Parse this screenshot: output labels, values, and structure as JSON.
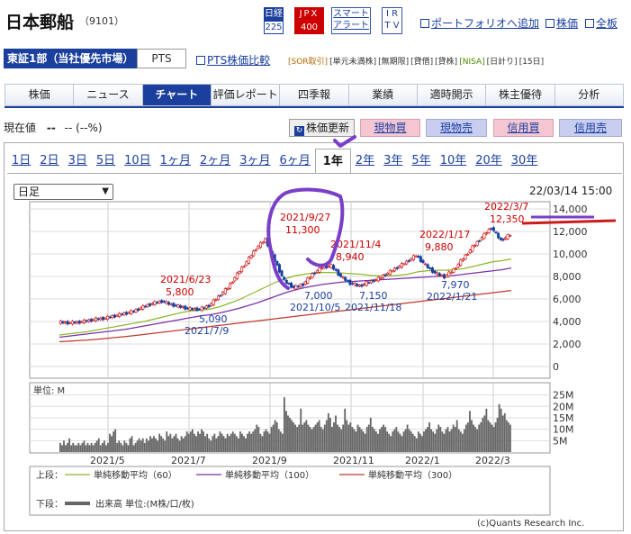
{
  "header": {
    "title": "日本郵船",
    "code": "（9101）",
    "badges": {
      "nikkei_top": "日経",
      "nikkei_bottom": "225",
      "jpx_top": "JPX",
      "jpx_bottom": "400",
      "smart_top": "スマート",
      "smart_bottom": "アラート",
      "ir_top": "I R",
      "ir_bottom": "T V"
    },
    "links": {
      "portfolio": "ポートフォリオへ追加",
      "stock": "株価",
      "board": "全板"
    }
  },
  "market": {
    "selected": "東証1部（当社優先市場）",
    "pts": "PTS",
    "pts_compare": "PTS株価比較",
    "tags": [
      "[SOR取引]",
      "[単元未満株]",
      "[無期限]",
      "[貸借]",
      "[貸株]",
      "[NISA]",
      "[日計り]",
      "[15日]"
    ]
  },
  "nav": [
    "株価",
    "ニュース",
    "チャート",
    "評価レポート",
    "四季報",
    "業績",
    "適時開示",
    "株主優待",
    "分析"
  ],
  "price": {
    "label": "現在値",
    "value": "--",
    "change": "-- (--%)"
  },
  "buttons": {
    "update": "株価更新",
    "genbuy": "現物買",
    "gensell": "現物売",
    "shinbuy": "信用買",
    "shinsell": "信用売"
  },
  "ranges": [
    "1日",
    "2日",
    "3日",
    "5日",
    "10日",
    "1ヶ月",
    "2ヶ月",
    "3ヶ月",
    "6ヶ月",
    "1年",
    "2年",
    "3年",
    "5年",
    "10年",
    "20年",
    "30年"
  ],
  "active_range": "1年",
  "select": {
    "value": "日足"
  },
  "datetime": "22/03/14 15:00",
  "legend": {
    "upper_label": "上段：",
    "lower_label": "下段：",
    "items": [
      "単純移動平均（60）",
      "単純移動平均（100）",
      "単純移動平均（300）"
    ],
    "volume": "出来高 単位:(M株/口/枚)"
  },
  "volume_unit": "単位: M",
  "copyright": "(c)Quants Research Inc.",
  "colors": {
    "accent": "#1b3f9c",
    "up": "#cc0000",
    "down": "#1a3fa0",
    "ma60": "#8cb82b",
    "ma100": "#7b2fa8",
    "ma300": "#c0392b",
    "volume": "#666666",
    "annotation_pen": "#7a3fc9"
  },
  "chart_data": [
    {
      "type": "line",
      "name": "price",
      "y_ticks": [
        "14,000",
        "12,000",
        "10,000",
        "8,000",
        "6,000",
        "4,000",
        "2,000",
        "0"
      ],
      "ylim": [
        0,
        14000
      ],
      "x_ticks": [
        "2021/5",
        "2021/7",
        "2021/9",
        "2021/11",
        "2022/1",
        "2022/3"
      ],
      "series": [
        {
          "name": "株価",
          "values": [
            3950,
            3880,
            3920,
            4050,
            4200,
            4300,
            4500,
            4700,
            4900,
            5300,
            5600,
            5800,
            5500,
            5300,
            5100,
            5090,
            5400,
            6200,
            7000,
            8200,
            9300,
            10500,
            11300,
            9400,
            7600,
            7000,
            7300,
            8200,
            8800,
            8940,
            8000,
            7400,
            7150,
            7500,
            7800,
            8300,
            8800,
            9300,
            9880,
            9000,
            8300,
            7970,
            8600,
            9600,
            10600,
            11500,
            12350,
            11200,
            11700
          ]
        },
        {
          "name": "単純移動平均（60）",
          "values": [
            2800,
            2900,
            3000,
            3100,
            3250,
            3400,
            3550,
            3700,
            3850,
            4000,
            4200,
            4400,
            4600,
            4800,
            4950,
            5000,
            5100,
            5300,
            5600,
            5900,
            6300,
            6700,
            7100,
            7500,
            7800,
            8050,
            8200,
            8300,
            8350,
            8350,
            8300,
            8250,
            8200,
            8100,
            8050,
            8050,
            8100,
            8200,
            8400,
            8500,
            8550,
            8550,
            8600,
            8700,
            8900,
            9100,
            9300,
            9400,
            9550
          ]
        },
        {
          "name": "単純移動平均（100）",
          "values": [
            2600,
            2700,
            2800,
            2900,
            3000,
            3100,
            3200,
            3300,
            3450,
            3600,
            3750,
            3900,
            4050,
            4200,
            4350,
            4500,
            4600,
            4750,
            4950,
            5150,
            5400,
            5650,
            5950,
            6250,
            6550,
            6800,
            7000,
            7150,
            7300,
            7400,
            7500,
            7550,
            7600,
            7650,
            7700,
            7750,
            7800,
            7850,
            7900,
            7950,
            8000,
            8050,
            8100,
            8200,
            8300,
            8400,
            8500,
            8600,
            8750
          ]
        },
        {
          "name": "単純移動平均（300）",
          "values": [
            2200,
            2250,
            2300,
            2350,
            2420,
            2500,
            2580,
            2660,
            2750,
            2850,
            2950,
            3050,
            3150,
            3250,
            3350,
            3450,
            3550,
            3650,
            3750,
            3850,
            3950,
            4050,
            4150,
            4250,
            4350,
            4450,
            4550,
            4650,
            4750,
            4850,
            4950,
            5050,
            5150,
            5250,
            5350,
            5450,
            5550,
            5650,
            5750,
            5850,
            5950,
            6050,
            6150,
            6250,
            6350,
            6450,
            6550,
            6650,
            6750
          ]
        }
      ],
      "annotations": [
        {
          "date": "2021/9/27",
          "value": "11,300",
          "kind": "high"
        },
        {
          "date": "2021/11/4",
          "value": "8,940",
          "kind": "high"
        },
        {
          "date": "2022/1/17",
          "value": "9,880",
          "kind": "high"
        },
        {
          "date": "2022/3/7",
          "value": "12,350",
          "kind": "high"
        },
        {
          "date": "2021/6/23",
          "value": "5,800",
          "kind": "high"
        },
        {
          "date": "2021/7/9",
          "value": "5,090",
          "kind": "low"
        },
        {
          "date": "2021/10/5",
          "value": "7,000",
          "kind": "low"
        },
        {
          "date": "2021/11/18",
          "value": "7,150",
          "kind": "low"
        },
        {
          "date": "2022/1/21",
          "value": "7,970",
          "kind": "low"
        }
      ]
    },
    {
      "type": "bar",
      "name": "volume",
      "y_ticks": [
        "25M",
        "20M",
        "15M",
        "10M",
        "5M"
      ],
      "ylim": [
        0,
        28
      ],
      "values": [
        4,
        3,
        5,
        3,
        4,
        6,
        3,
        4,
        3,
        3,
        4,
        3,
        4,
        5,
        3,
        4,
        3,
        4,
        3,
        4,
        5,
        6,
        3,
        4,
        5,
        3,
        4,
        8,
        7,
        9,
        10,
        4,
        5,
        4,
        3,
        5,
        4,
        3,
        6,
        7,
        3,
        4,
        5,
        6,
        5,
        6,
        4,
        6,
        5,
        7,
        6,
        7,
        6,
        5,
        8,
        7,
        6,
        5,
        9,
        7,
        8,
        6,
        7,
        8,
        6,
        5,
        7,
        6,
        7,
        9,
        8,
        9,
        10,
        8,
        7,
        9,
        8,
        10,
        9,
        7,
        8,
        6,
        5,
        7,
        8,
        6,
        7,
        9,
        8,
        7,
        6,
        8,
        7,
        8,
        9,
        8,
        7,
        6,
        9,
        8,
        7,
        6,
        8,
        9,
        8,
        9,
        10,
        12,
        11,
        8,
        7,
        9,
        10,
        9,
        8,
        11,
        12,
        14,
        13,
        10,
        9,
        8,
        24,
        18,
        16,
        15,
        14,
        13,
        12,
        11,
        12,
        19,
        12,
        13,
        14,
        12,
        11,
        10,
        11,
        12,
        13,
        14,
        11,
        10,
        12,
        14,
        17,
        15,
        11,
        13,
        16,
        12,
        11,
        10,
        12,
        19,
        14,
        12,
        13,
        11,
        10,
        9,
        12,
        11,
        10,
        9,
        8,
        11,
        12,
        15,
        11,
        10,
        9,
        8,
        10,
        11,
        12,
        11,
        9,
        8,
        7,
        9,
        10,
        11,
        9,
        8,
        7,
        9,
        10,
        12,
        10,
        9,
        8,
        7,
        6,
        9,
        8,
        7,
        9,
        10,
        11,
        13,
        10,
        9,
        8,
        10,
        12,
        11,
        9,
        8,
        10,
        11,
        9,
        10,
        12,
        11,
        14,
        10,
        9,
        8,
        10,
        12,
        13,
        18,
        14,
        12,
        11,
        10,
        12,
        13,
        15,
        16,
        19,
        14,
        13,
        12,
        11,
        13,
        15,
        21,
        19,
        16,
        17,
        14,
        13,
        12
      ]
    }
  ]
}
